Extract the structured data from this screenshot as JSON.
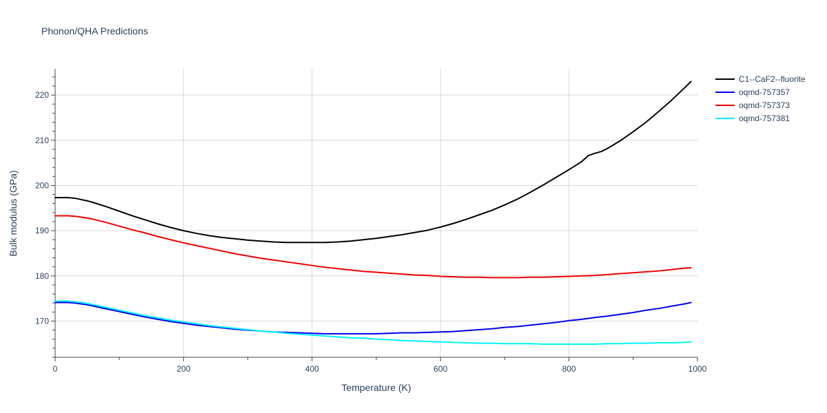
{
  "chart_data": {
    "type": "line",
    "title": "Phonon/QHA Predictions",
    "xlabel": "Temperature (K)",
    "ylabel": "Bulk modulus (GPa)",
    "xlim": [
      0,
      1000
    ],
    "ylim": [
      162.0,
      225.8
    ],
    "xticks": [
      0,
      200,
      400,
      600,
      800,
      1000
    ],
    "yticks": [
      170,
      180,
      190,
      200,
      210,
      220
    ],
    "grid": true,
    "legend_position": "top-right",
    "series": [
      {
        "name": "C1--CaF2--fluorite",
        "color": "#000000",
        "x": [
          0,
          10,
          20,
          30,
          40,
          50,
          60,
          80,
          100,
          120,
          140,
          160,
          180,
          200,
          220,
          240,
          260,
          280,
          300,
          320,
          340,
          360,
          380,
          400,
          420,
          440,
          460,
          480,
          500,
          520,
          540,
          560,
          580,
          600,
          620,
          640,
          660,
          680,
          700,
          720,
          740,
          760,
          780,
          800,
          810,
          820,
          830,
          840,
          850,
          860,
          880,
          900,
          920,
          940,
          960,
          980,
          990
        ],
        "y": [
          197.3,
          197.3,
          197.3,
          197.2,
          196.9,
          196.6,
          196.2,
          195.3,
          194.3,
          193.3,
          192.4,
          191.5,
          190.7,
          190.0,
          189.4,
          188.9,
          188.5,
          188.2,
          187.9,
          187.7,
          187.5,
          187.4,
          187.4,
          187.4,
          187.4,
          187.5,
          187.7,
          188.0,
          188.3,
          188.7,
          189.1,
          189.6,
          190.1,
          190.8,
          191.6,
          192.5,
          193.5,
          194.5,
          195.7,
          197.0,
          198.5,
          200.1,
          201.8,
          203.5,
          204.4,
          205.3,
          206.6,
          207.1,
          207.5,
          208.2,
          209.9,
          211.9,
          214.0,
          216.4,
          218.9,
          221.6,
          223.0
        ]
      },
      {
        "name": "oqmd-757357",
        "color": "#0000ee",
        "x": [
          0,
          10,
          20,
          30,
          40,
          50,
          60,
          80,
          100,
          120,
          140,
          160,
          180,
          200,
          220,
          240,
          260,
          280,
          300,
          320,
          340,
          360,
          380,
          400,
          420,
          440,
          460,
          480,
          500,
          520,
          540,
          560,
          580,
          600,
          620,
          640,
          660,
          680,
          700,
          720,
          740,
          760,
          780,
          800,
          820,
          840,
          860,
          880,
          900,
          920,
          940,
          960,
          980,
          990
        ],
        "y": [
          174.1,
          174.1,
          174.1,
          174.0,
          173.8,
          173.6,
          173.3,
          172.7,
          172.1,
          171.5,
          170.9,
          170.4,
          169.9,
          169.5,
          169.1,
          168.8,
          168.5,
          168.2,
          168.0,
          167.8,
          167.6,
          167.5,
          167.4,
          167.3,
          167.2,
          167.2,
          167.2,
          167.2,
          167.2,
          167.3,
          167.4,
          167.4,
          167.5,
          167.6,
          167.7,
          167.9,
          168.1,
          168.3,
          168.6,
          168.8,
          169.1,
          169.4,
          169.7,
          170.1,
          170.4,
          170.8,
          171.1,
          171.5,
          171.9,
          172.4,
          172.8,
          173.3,
          173.8,
          174.1
        ]
      },
      {
        "name": "oqmd-757373",
        "color": "#ee0000",
        "x": [
          0,
          10,
          20,
          30,
          40,
          50,
          60,
          80,
          100,
          120,
          140,
          160,
          180,
          200,
          220,
          240,
          260,
          280,
          300,
          320,
          340,
          360,
          380,
          400,
          420,
          440,
          460,
          480,
          500,
          520,
          540,
          560,
          580,
          600,
          620,
          640,
          660,
          680,
          700,
          720,
          740,
          760,
          780,
          800,
          820,
          840,
          860,
          880,
          900,
          920,
          940,
          960,
          980,
          990
        ],
        "y": [
          193.3,
          193.3,
          193.3,
          193.2,
          193.0,
          192.8,
          192.5,
          191.8,
          191.0,
          190.2,
          189.5,
          188.7,
          188.0,
          187.3,
          186.7,
          186.1,
          185.5,
          184.9,
          184.4,
          183.9,
          183.5,
          183.1,
          182.7,
          182.3,
          181.9,
          181.6,
          181.3,
          181.0,
          180.8,
          180.6,
          180.4,
          180.2,
          180.1,
          179.9,
          179.8,
          179.7,
          179.7,
          179.6,
          179.6,
          179.6,
          179.7,
          179.7,
          179.8,
          179.9,
          180.0,
          180.1,
          180.3,
          180.5,
          180.7,
          180.9,
          181.1,
          181.4,
          181.7,
          181.8
        ]
      },
      {
        "name": "oqmd-757381",
        "color": "#00f5ff",
        "x": [
          0,
          10,
          20,
          30,
          40,
          50,
          60,
          80,
          100,
          120,
          140,
          160,
          180,
          200,
          220,
          240,
          260,
          280,
          300,
          320,
          340,
          360,
          380,
          400,
          420,
          440,
          460,
          480,
          500,
          520,
          540,
          560,
          580,
          600,
          620,
          640,
          660,
          680,
          700,
          720,
          740,
          760,
          780,
          800,
          820,
          840,
          860,
          880,
          900,
          920,
          940,
          960,
          980,
          990
        ],
        "y": [
          174.4,
          174.4,
          174.4,
          174.3,
          174.1,
          173.9,
          173.6,
          173.0,
          172.4,
          171.8,
          171.2,
          170.7,
          170.2,
          169.8,
          169.4,
          169.0,
          168.7,
          168.4,
          168.1,
          167.8,
          167.6,
          167.3,
          167.1,
          166.9,
          166.7,
          166.5,
          166.3,
          166.2,
          166.0,
          165.9,
          165.7,
          165.6,
          165.5,
          165.4,
          165.3,
          165.2,
          165.1,
          165.1,
          165.0,
          165.0,
          165.0,
          164.9,
          164.9,
          164.9,
          164.9,
          164.9,
          165.0,
          165.0,
          165.1,
          165.1,
          165.2,
          165.2,
          165.3,
          165.4
        ]
      }
    ]
  }
}
